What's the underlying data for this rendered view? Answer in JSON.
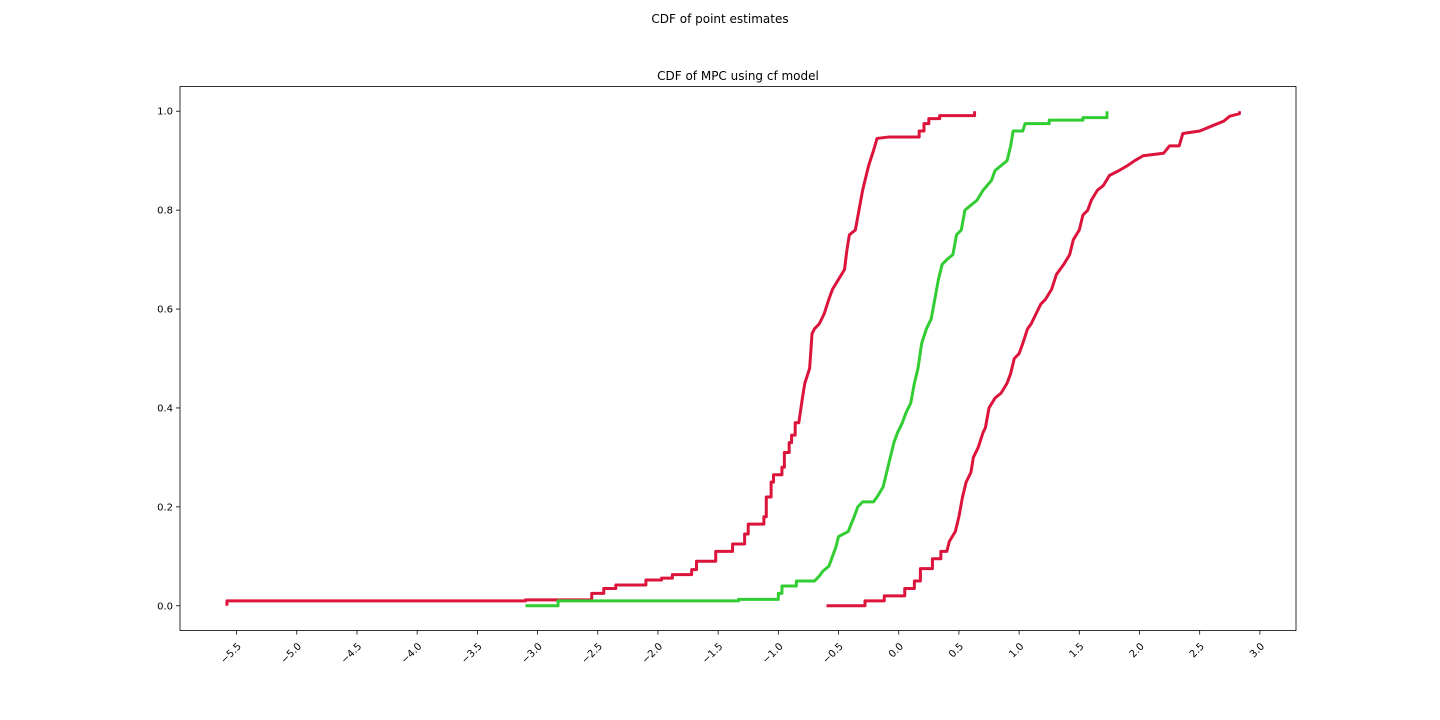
{
  "figure": {
    "suptitle": "CDF of point estimates"
  },
  "chart_data": {
    "type": "line",
    "title": "CDF of MPC using cf model",
    "xlabel": "",
    "ylabel": "",
    "xlim": [
      -5.97,
      3.3
    ],
    "ylim": [
      -0.05,
      1.05
    ],
    "xticks": [
      -5.5,
      -5.0,
      -4.5,
      -4.0,
      -3.5,
      -3.0,
      -2.5,
      -2.0,
      -1.5,
      -1.0,
      -0.5,
      0.0,
      0.5,
      1.0,
      1.5,
      2.0,
      2.5,
      3.0
    ],
    "xtick_labels": [
      "−5.5",
      "−5.0",
      "−4.5",
      "−4.0",
      "−3.5",
      "−3.0",
      "−2.5",
      "−2.0",
      "−1.5",
      "−1.0",
      "−0.5",
      "0.0",
      "0.5",
      "1.0",
      "1.5",
      "2.0",
      "2.5",
      "3.0"
    ],
    "yticks": [
      0.0,
      0.2,
      0.4,
      0.6,
      0.8,
      1.0
    ],
    "ytick_labels": [
      "0.0",
      "0.2",
      "0.4",
      "0.6",
      "0.8",
      "1.0"
    ],
    "grid": false,
    "legend": null,
    "series": [
      {
        "color": "#dc143c",
        "points": [
          [
            -5.58,
            0.0
          ],
          [
            -5.58,
            0.01
          ],
          [
            -3.1,
            0.01
          ],
          [
            -3.1,
            0.012
          ],
          [
            -2.55,
            0.012
          ],
          [
            -2.55,
            0.025
          ],
          [
            -2.45,
            0.025
          ],
          [
            -2.45,
            0.035
          ],
          [
            -2.35,
            0.035
          ],
          [
            -2.35,
            0.042
          ],
          [
            -2.1,
            0.042
          ],
          [
            -2.1,
            0.052
          ],
          [
            -1.97,
            0.052
          ],
          [
            -1.97,
            0.056
          ],
          [
            -1.88,
            0.056
          ],
          [
            -1.88,
            0.063
          ],
          [
            -1.72,
            0.063
          ],
          [
            -1.72,
            0.073
          ],
          [
            -1.68,
            0.073
          ],
          [
            -1.68,
            0.09
          ],
          [
            -1.52,
            0.09
          ],
          [
            -1.52,
            0.11
          ],
          [
            -1.38,
            0.11
          ],
          [
            -1.38,
            0.125
          ],
          [
            -1.28,
            0.125
          ],
          [
            -1.28,
            0.145
          ],
          [
            -1.25,
            0.145
          ],
          [
            -1.25,
            0.165
          ],
          [
            -1.12,
            0.165
          ],
          [
            -1.12,
            0.18
          ],
          [
            -1.1,
            0.18
          ],
          [
            -1.1,
            0.22
          ],
          [
            -1.06,
            0.22
          ],
          [
            -1.06,
            0.25
          ],
          [
            -1.04,
            0.25
          ],
          [
            -1.04,
            0.265
          ],
          [
            -0.97,
            0.265
          ],
          [
            -0.97,
            0.28
          ],
          [
            -0.95,
            0.28
          ],
          [
            -0.95,
            0.31
          ],
          [
            -0.91,
            0.31
          ],
          [
            -0.91,
            0.33
          ],
          [
            -0.89,
            0.33
          ],
          [
            -0.89,
            0.345
          ],
          [
            -0.86,
            0.345
          ],
          [
            -0.86,
            0.37
          ],
          [
            -0.83,
            0.37
          ],
          [
            -0.8,
            0.42
          ],
          [
            -0.78,
            0.45
          ],
          [
            -0.74,
            0.48
          ],
          [
            -0.72,
            0.55
          ],
          [
            -0.7,
            0.56
          ],
          [
            -0.66,
            0.57
          ],
          [
            -0.62,
            0.59
          ],
          [
            -0.58,
            0.62
          ],
          [
            -0.55,
            0.64
          ],
          [
            -0.5,
            0.66
          ],
          [
            -0.45,
            0.68
          ],
          [
            -0.43,
            0.72
          ],
          [
            -0.41,
            0.75
          ],
          [
            -0.36,
            0.76
          ],
          [
            -0.33,
            0.8
          ],
          [
            -0.3,
            0.84
          ],
          [
            -0.27,
            0.87
          ],
          [
            -0.25,
            0.89
          ],
          [
            -0.21,
            0.92
          ],
          [
            -0.18,
            0.945
          ],
          [
            -0.08,
            0.948
          ],
          [
            0.17,
            0.948
          ],
          [
            0.17,
            0.96
          ],
          [
            0.21,
            0.96
          ],
          [
            0.21,
            0.975
          ],
          [
            0.25,
            0.975
          ],
          [
            0.25,
            0.985
          ],
          [
            0.34,
            0.985
          ],
          [
            0.34,
            0.991
          ],
          [
            0.63,
            0.991
          ],
          [
            0.63,
            1.0
          ]
        ]
      },
      {
        "color": "#32cd32",
        "points": [
          [
            -3.1,
            0.0
          ],
          [
            -2.83,
            0.0
          ],
          [
            -2.83,
            0.01
          ],
          [
            -1.33,
            0.01
          ],
          [
            -1.33,
            0.013
          ],
          [
            -1.0,
            0.013
          ],
          [
            -1.0,
            0.025
          ],
          [
            -0.97,
            0.025
          ],
          [
            -0.97,
            0.04
          ],
          [
            -0.85,
            0.04
          ],
          [
            -0.85,
            0.05
          ],
          [
            -0.7,
            0.05
          ],
          [
            -0.66,
            0.06
          ],
          [
            -0.63,
            0.07
          ],
          [
            -0.58,
            0.08
          ],
          [
            -0.55,
            0.1
          ],
          [
            -0.52,
            0.12
          ],
          [
            -0.5,
            0.14
          ],
          [
            -0.42,
            0.15
          ],
          [
            -0.37,
            0.18
          ],
          [
            -0.34,
            0.2
          ],
          [
            -0.3,
            0.21
          ],
          [
            -0.21,
            0.21
          ],
          [
            -0.18,
            0.22
          ],
          [
            -0.13,
            0.24
          ],
          [
            -0.1,
            0.27
          ],
          [
            -0.07,
            0.3
          ],
          [
            -0.04,
            0.33
          ],
          [
            -0.01,
            0.35
          ],
          [
            0.03,
            0.37
          ],
          [
            0.06,
            0.39
          ],
          [
            0.1,
            0.41
          ],
          [
            0.13,
            0.45
          ],
          [
            0.16,
            0.48
          ],
          [
            0.19,
            0.53
          ],
          [
            0.23,
            0.56
          ],
          [
            0.27,
            0.58
          ],
          [
            0.3,
            0.62
          ],
          [
            0.33,
            0.66
          ],
          [
            0.36,
            0.69
          ],
          [
            0.4,
            0.7
          ],
          [
            0.45,
            0.71
          ],
          [
            0.48,
            0.75
          ],
          [
            0.52,
            0.76
          ],
          [
            0.55,
            0.8
          ],
          [
            0.6,
            0.81
          ],
          [
            0.65,
            0.82
          ],
          [
            0.7,
            0.84
          ],
          [
            0.77,
            0.86
          ],
          [
            0.8,
            0.88
          ],
          [
            0.85,
            0.89
          ],
          [
            0.9,
            0.9
          ],
          [
            0.93,
            0.93
          ],
          [
            0.95,
            0.96
          ],
          [
            1.03,
            0.96
          ],
          [
            1.05,
            0.975
          ],
          [
            1.25,
            0.975
          ],
          [
            1.25,
            0.982
          ],
          [
            1.53,
            0.982
          ],
          [
            1.53,
            0.987
          ],
          [
            1.73,
            0.987
          ],
          [
            1.73,
            1.0
          ]
        ]
      },
      {
        "color": "#dc143c",
        "points": [
          [
            -0.6,
            0.0
          ],
          [
            -0.28,
            0.0
          ],
          [
            -0.28,
            0.01
          ],
          [
            -0.12,
            0.01
          ],
          [
            -0.12,
            0.02
          ],
          [
            0.05,
            0.02
          ],
          [
            0.05,
            0.035
          ],
          [
            0.13,
            0.035
          ],
          [
            0.13,
            0.05
          ],
          [
            0.18,
            0.05
          ],
          [
            0.18,
            0.075
          ],
          [
            0.28,
            0.075
          ],
          [
            0.28,
            0.095
          ],
          [
            0.35,
            0.095
          ],
          [
            0.35,
            0.11
          ],
          [
            0.4,
            0.11
          ],
          [
            0.42,
            0.13
          ],
          [
            0.47,
            0.15
          ],
          [
            0.5,
            0.18
          ],
          [
            0.53,
            0.22
          ],
          [
            0.56,
            0.25
          ],
          [
            0.6,
            0.27
          ],
          [
            0.62,
            0.3
          ],
          [
            0.66,
            0.32
          ],
          [
            0.7,
            0.35
          ],
          [
            0.72,
            0.36
          ],
          [
            0.75,
            0.4
          ],
          [
            0.8,
            0.42
          ],
          [
            0.85,
            0.43
          ],
          [
            0.9,
            0.45
          ],
          [
            0.93,
            0.47
          ],
          [
            0.96,
            0.5
          ],
          [
            1.0,
            0.51
          ],
          [
            1.03,
            0.53
          ],
          [
            1.07,
            0.56
          ],
          [
            1.1,
            0.57
          ],
          [
            1.14,
            0.59
          ],
          [
            1.18,
            0.61
          ],
          [
            1.22,
            0.62
          ],
          [
            1.27,
            0.64
          ],
          [
            1.31,
            0.67
          ],
          [
            1.37,
            0.69
          ],
          [
            1.42,
            0.71
          ],
          [
            1.45,
            0.74
          ],
          [
            1.5,
            0.76
          ],
          [
            1.53,
            0.79
          ],
          [
            1.57,
            0.8
          ],
          [
            1.6,
            0.82
          ],
          [
            1.65,
            0.84
          ],
          [
            1.7,
            0.85
          ],
          [
            1.75,
            0.87
          ],
          [
            1.83,
            0.88
          ],
          [
            1.9,
            0.89
          ],
          [
            1.96,
            0.9
          ],
          [
            2.03,
            0.91
          ],
          [
            2.2,
            0.915
          ],
          [
            2.25,
            0.93
          ],
          [
            2.33,
            0.93
          ],
          [
            2.36,
            0.955
          ],
          [
            2.5,
            0.96
          ],
          [
            2.6,
            0.97
          ],
          [
            2.7,
            0.98
          ],
          [
            2.75,
            0.99
          ],
          [
            2.83,
            0.995
          ],
          [
            2.83,
            1.0
          ]
        ]
      }
    ]
  }
}
